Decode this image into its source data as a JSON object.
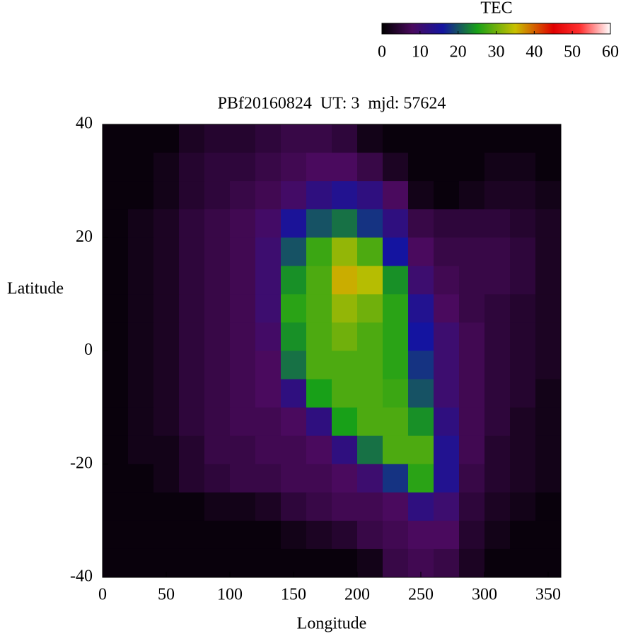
{
  "chart_data": {
    "type": "heatmap",
    "title": "PBf20160824  UT: 3  mjd: 57624",
    "xlabel": "Longitude",
    "ylabel": "Latitude",
    "xlim": [
      0,
      360
    ],
    "ylim": [
      -40,
      40
    ],
    "xticks": [
      0,
      50,
      100,
      150,
      200,
      250,
      300,
      350
    ],
    "yticks": [
      -40,
      -20,
      0,
      20,
      40
    ],
    "x": [
      10,
      30,
      50,
      70,
      90,
      110,
      130,
      150,
      170,
      190,
      210,
      230,
      250,
      270,
      290,
      310,
      330,
      350
    ],
    "y": [
      37.5,
      32.5,
      27.5,
      22.5,
      17.5,
      12.5,
      7.5,
      2.5,
      -2.5,
      -7.5,
      -12.5,
      -17.5,
      -22.5,
      -27.5,
      -32.5,
      -37.5
    ],
    "z": [
      [
        1,
        1,
        1,
        3,
        4,
        4,
        5,
        6,
        6,
        5,
        2,
        1,
        1,
        1,
        1,
        1,
        1,
        1
      ],
      [
        1,
        1,
        2,
        4,
        5,
        5,
        6,
        7,
        8,
        8,
        6,
        3,
        1,
        1,
        1,
        2,
        2,
        1
      ],
      [
        1,
        1,
        2,
        4,
        5,
        6,
        7,
        9,
        12,
        14,
        12,
        8,
        2,
        1,
        2,
        3,
        3,
        2
      ],
      [
        1,
        2,
        3,
        5,
        6,
        7,
        9,
        15,
        20,
        22,
        18,
        12,
        6,
        5,
        5,
        5,
        4,
        3
      ],
      [
        1,
        2,
        3,
        5,
        6,
        7,
        10,
        20,
        27,
        32,
        28,
        16,
        8,
        6,
        6,
        6,
        5,
        3
      ],
      [
        1,
        2,
        3,
        5,
        6,
        7,
        10,
        24,
        28,
        36,
        34,
        24,
        10,
        7,
        6,
        6,
        5,
        3
      ],
      [
        1,
        2,
        3,
        5,
        6,
        7,
        10,
        26,
        28,
        32,
        30,
        26,
        14,
        8,
        6,
        5,
        4,
        3
      ],
      [
        1,
        2,
        3,
        5,
        6,
        7,
        9,
        24,
        28,
        30,
        28,
        26,
        16,
        10,
        7,
        5,
        4,
        3
      ],
      [
        1,
        2,
        3,
        5,
        6,
        7,
        8,
        22,
        28,
        28,
        28,
        26,
        18,
        10,
        7,
        5,
        4,
        3
      ],
      [
        1,
        2,
        3,
        5,
        6,
        7,
        8,
        12,
        25,
        28,
        28,
        27,
        20,
        10,
        7,
        5,
        4,
        2
      ],
      [
        1,
        2,
        3,
        5,
        6,
        7,
        7,
        8,
        12,
        25,
        28,
        28,
        24,
        12,
        7,
        5,
        3,
        2
      ],
      [
        1,
        2,
        2,
        4,
        6,
        6,
        7,
        7,
        8,
        12,
        22,
        28,
        28,
        14,
        7,
        4,
        3,
        2
      ],
      [
        1,
        1,
        2,
        4,
        5,
        6,
        6,
        7,
        7,
        8,
        10,
        18,
        26,
        14,
        6,
        4,
        3,
        2
      ],
      [
        1,
        1,
        1,
        1,
        2,
        2,
        3,
        5,
        6,
        7,
        7,
        8,
        12,
        10,
        5,
        3,
        2,
        1
      ],
      [
        1,
        1,
        1,
        1,
        1,
        1,
        1,
        2,
        3,
        4,
        6,
        7,
        8,
        8,
        4,
        2,
        1,
        1
      ],
      [
        1,
        1,
        1,
        1,
        1,
        1,
        1,
        1,
        1,
        1,
        2,
        6,
        7,
        6,
        3,
        1,
        1,
        1
      ]
    ],
    "colorbar": {
      "title": "TEC",
      "lim": [
        0,
        60
      ],
      "ticks": [
        0,
        10,
        20,
        30,
        40,
        50,
        60
      ]
    },
    "colorscale": [
      [
        0,
        "#000000"
      ],
      [
        8,
        "#4a0a5e"
      ],
      [
        16,
        "#1414a0"
      ],
      [
        25,
        "#18a018"
      ],
      [
        35,
        "#c8c000"
      ],
      [
        45,
        "#e00000"
      ],
      [
        52,
        "#ff3030"
      ],
      [
        60,
        "#ffffff"
      ]
    ]
  }
}
